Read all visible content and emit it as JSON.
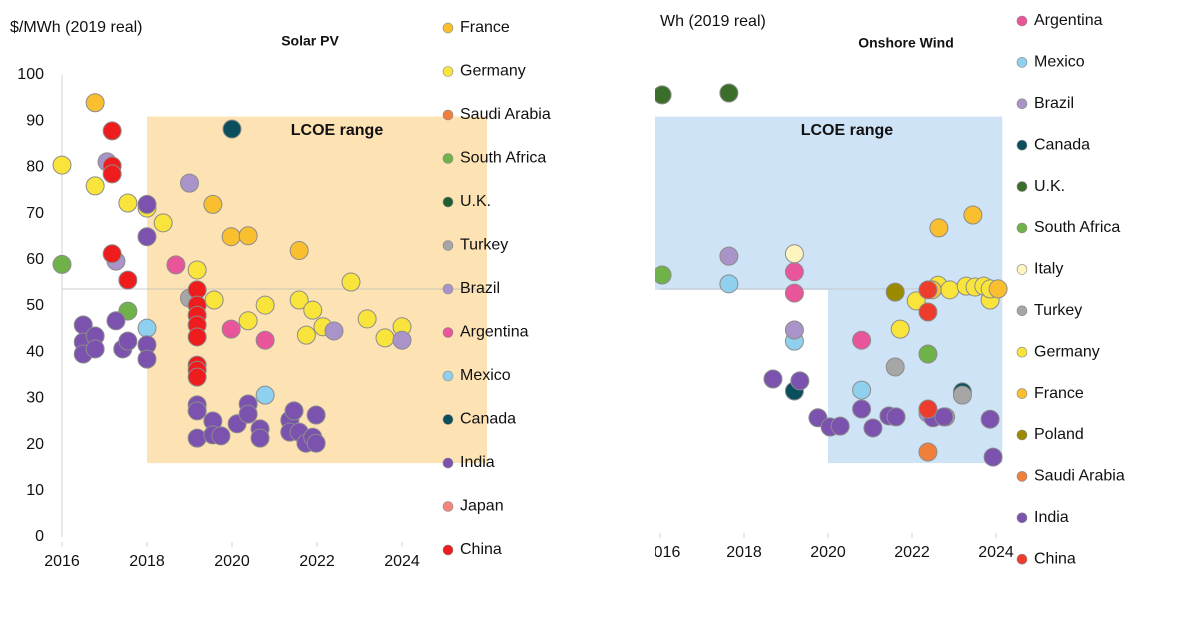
{
  "chart_data": [
    {
      "type": "scatter",
      "title": "Solar PV",
      "y_label": "$/MWh (2019 real)",
      "xlim": [
        2016,
        2024
      ],
      "ylim": [
        0,
        100
      ],
      "xticks": [
        2016,
        2018,
        2020,
        2022,
        2024
      ],
      "yticks": [
        0,
        10,
        20,
        30,
        40,
        50,
        60,
        70,
        80,
        90,
        100
      ],
      "region": {
        "label": "LCOE range",
        "color": "#fde2b4",
        "label_color": "#e5a823",
        "boxes": [
          {
            "x": [
              2018,
              2026
            ],
            "y": [
              16,
              91
            ]
          }
        ]
      },
      "series": [
        {
          "name": "France",
          "color": "#f9bf2f",
          "x": [
            2016.78,
            2019.55,
            2019.98,
            2020.38,
            2021.58
          ],
          "values": [
            94,
            72,
            65,
            65.2,
            62
          ]
        },
        {
          "name": "Germany",
          "color": "#f8e43b",
          "x": [
            2016,
            2016.78,
            2017.55,
            2018,
            2018.38,
            2019.18,
            2019.58,
            2020.38,
            2020.78,
            2021.58,
            2021.75,
            2021.9,
            2022.14,
            2022.8,
            2023.18,
            2023.6,
            2024
          ],
          "values": [
            80.5,
            76,
            72.3,
            71.2,
            68,
            57.8,
            51.3,
            46.8,
            50.2,
            51.3,
            43.7,
            49.1,
            45.5,
            55.2,
            47.2,
            43.1,
            45.5
          ]
        },
        {
          "name": "Saudi Arabia",
          "color": "#f07f3c",
          "x": [],
          "values": []
        },
        {
          "name": "South Africa",
          "color": "#6fb24a",
          "x": [
            2016,
            2017.55
          ],
          "values": [
            59,
            48.9
          ]
        },
        {
          "name": "U.K.",
          "color": "#1e5e2f",
          "x": [],
          "values": []
        },
        {
          "name": "Turkey",
          "color": "#a6a6a6",
          "x": [
            2019
          ],
          "values": [
            51.7
          ]
        },
        {
          "name": "Brazil",
          "color": "#a993c9",
          "x": [
            2017.06,
            2017.27,
            2019,
            2022.4,
            2024
          ],
          "values": [
            81.2,
            59.7,
            76.6,
            44.6,
            42.6
          ]
        },
        {
          "name": "Argentina",
          "color": "#e9559a",
          "x": [
            2018.68,
            2019.98,
            2020.78
          ],
          "values": [
            58.9,
            45,
            42.6
          ]
        },
        {
          "name": "Mexico",
          "color": "#8fd0ee",
          "x": [
            2018,
            2020.78
          ],
          "values": [
            45.2,
            30.7
          ]
        },
        {
          "name": "Canada",
          "color": "#0b4f5c",
          "x": [
            2020
          ],
          "values": [
            88.3
          ]
        },
        {
          "name": "India",
          "color": "#7b52ad",
          "x": [
            2016.5,
            2016.5,
            2016.5,
            2016.78,
            2016.78,
            2017.27,
            2017.43,
            2017.55,
            2018,
            2018,
            2018,
            2018,
            2019.18,
            2019.18,
            2019.18,
            2019.55,
            2019.55,
            2019.74,
            2020.12,
            2020.38,
            2020.38,
            2020.66,
            2020.66,
            2021.36,
            2021.36,
            2021.46,
            2021.58,
            2021.74,
            2021.9,
            2021.98,
            2021.98
          ],
          "values": [
            45.9,
            42.2,
            39.6,
            43.5,
            40.7,
            46.8,
            40.7,
            42.4,
            72,
            65,
            41.6,
            38.5,
            28.6,
            27.3,
            21.4,
            25.1,
            22.1,
            21.9,
            24.5,
            28.8,
            26.6,
            23.4,
            21.4,
            25.3,
            22.7,
            27.3,
            22.7,
            20.3,
            21.6,
            26.4,
            20.3
          ]
        },
        {
          "name": "Japan",
          "color": "#f4857a",
          "x": [],
          "values": []
        },
        {
          "name": "China",
          "color": "#ee1c1c",
          "x": [
            2017.18,
            2017.18,
            2017.18,
            2017.18,
            2017.55,
            2019.18,
            2019.18,
            2019.18,
            2019.18,
            2019.18,
            2019.18,
            2019.18,
            2019.18
          ],
          "values": [
            87.9,
            80.3,
            78.6,
            61.3,
            55.6,
            53.5,
            50.2,
            48,
            45.9,
            43.3,
            37.2,
            36.1,
            34.6
          ]
        }
      ]
    },
    {
      "type": "scatter",
      "title": "Onshore Wind",
      "y_label": "Wh (2019 real)",
      "xlim": [
        2016,
        2024
      ],
      "ylim": [
        0,
        100
      ],
      "xticks": [
        {
          "value": 2016,
          "label": "016"
        },
        2018,
        2020,
        2022,
        2024
      ],
      "region": {
        "label": "LCOE range",
        "color": "#cfe3f6",
        "label_color": "#2ea3dd",
        "boxes": [
          {
            "x": [
              2015.8,
              2024.15
            ],
            "y": [
              53.5,
              91
            ]
          },
          {
            "x": [
              2020,
              2024.15
            ],
            "y": [
              16,
              53.5
            ]
          }
        ]
      },
      "series": [
        {
          "name": "Argentina",
          "color": "#e9559a",
          "x": [
            2019.2,
            2019.2,
            2020.8
          ],
          "values": [
            57.4,
            52.8,
            42.6
          ]
        },
        {
          "name": "Mexico",
          "color": "#8fd0ee",
          "x": [
            2017.64,
            2019.2,
            2020.8
          ],
          "values": [
            54.8,
            42.4,
            31.8
          ]
        },
        {
          "name": "Brazil",
          "color": "#a993c9",
          "x": [
            2017.64,
            2019.2,
            2022.38,
            2022.8
          ],
          "values": [
            60.8,
            44.8,
            26.8,
            26
          ]
        },
        {
          "name": "Canada",
          "color": "#0b4f5c",
          "x": [
            2019.2,
            2023.2
          ],
          "values": [
            31.6,
            31.4
          ]
        },
        {
          "name": "U.K.",
          "color": "#3b6e2a",
          "x": [
            2016.05,
            2017.64
          ],
          "values": [
            95.7,
            96.1
          ]
        },
        {
          "name": "South Africa",
          "color": "#6fb24a",
          "x": [
            2016.05,
            2022.38
          ],
          "values": [
            56.7,
            39.6
          ]
        },
        {
          "name": "Italy",
          "color": "#fdf4c0",
          "x": [
            2019.2
          ],
          "values": [
            61.3
          ]
        },
        {
          "name": "Turkey",
          "color": "#a6a6a6",
          "x": [
            2021.6,
            2023.2
          ],
          "values": [
            36.8,
            30.7
          ]
        },
        {
          "name": "Germany",
          "color": "#f8e43b",
          "x": [
            2021.72,
            2022.1,
            2022.62,
            2022.9,
            2023.29,
            2023.5,
            2023.71,
            2023.86,
            2023.86
          ],
          "values": [
            45,
            51.1,
            54.5,
            53.5,
            54.3,
            54.1,
            54.3,
            51.3,
            53.7
          ]
        },
        {
          "name": "France",
          "color": "#f9bf2f",
          "x": [
            2022.64,
            2023.45,
            2022.48,
            2024.05
          ],
          "values": [
            66.9,
            69.7,
            53.5,
            53.7
          ]
        },
        {
          "name": "Poland",
          "color": "#9a8a00",
          "x": [
            2021.6
          ],
          "values": [
            53
          ]
        },
        {
          "name": "Saudi Arabia",
          "color": "#f07f3c",
          "x": [
            2022.38
          ],
          "values": [
            18.4
          ]
        },
        {
          "name": "India",
          "color": "#7b52ad",
          "x": [
            2018.69,
            2019.33,
            2019.76,
            2020.05,
            2020.29,
            2020.8,
            2021.07,
            2021.45,
            2021.62,
            2022.5,
            2022.76,
            2023.86,
            2023.93
          ],
          "values": [
            34.2,
            33.8,
            25.8,
            23.8,
            24,
            27.7,
            23.6,
            26.2,
            26,
            25.8,
            26,
            25.5,
            17.3
          ]
        },
        {
          "name": "China",
          "color": "#ee3c2c",
          "x": [
            2022.38,
            2022.38,
            2022.38
          ],
          "values": [
            53.5,
            48.7,
            27.7
          ]
        }
      ]
    }
  ]
}
